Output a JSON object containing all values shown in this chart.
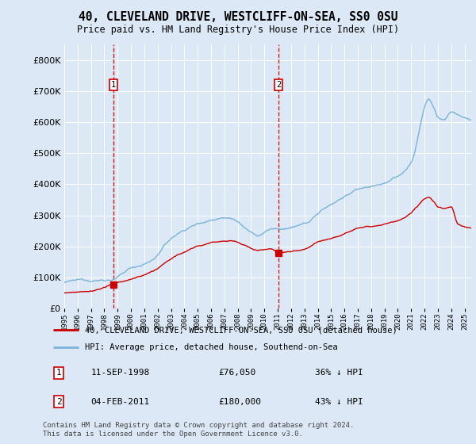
{
  "title": "40, CLEVELAND DRIVE, WESTCLIFF-ON-SEA, SS0 0SU",
  "subtitle": "Price paid vs. HM Land Registry's House Price Index (HPI)",
  "background_color": "#dce8f5",
  "plot_bg": "#dce8f5",
  "ylim": [
    0,
    850000
  ],
  "yticks": [
    0,
    100000,
    200000,
    300000,
    400000,
    500000,
    600000,
    700000,
    800000
  ],
  "xlim_start": 1995.0,
  "xlim_end": 2025.5,
  "legend1_label": "40, CLEVELAND DRIVE, WESTCLIFF-ON-SEA, SS0 0SU (detached house)",
  "legend2_label": "HPI: Average price, detached house, Southend-on-Sea",
  "marker1_date": 1998.7,
  "marker1_price": 76050,
  "marker2_date": 2011.08,
  "marker2_price": 180000,
  "marker1_text": "11-SEP-1998",
  "marker1_price_text": "£76,050",
  "marker1_hpi_text": "36% ↓ HPI",
  "marker2_text": "04-FEB-2011",
  "marker2_price_text": "£180,000",
  "marker2_hpi_text": "43% ↓ HPI",
  "footer": "Contains HM Land Registry data © Crown copyright and database right 2024.\nThis data is licensed under the Open Government Licence v3.0.",
  "hpi_color": "#7ab4d8",
  "price_color": "#cc0000",
  "marker_color": "#cc0000",
  "grid_color": "#ffffff",
  "outer_bg": "#dce8f5"
}
